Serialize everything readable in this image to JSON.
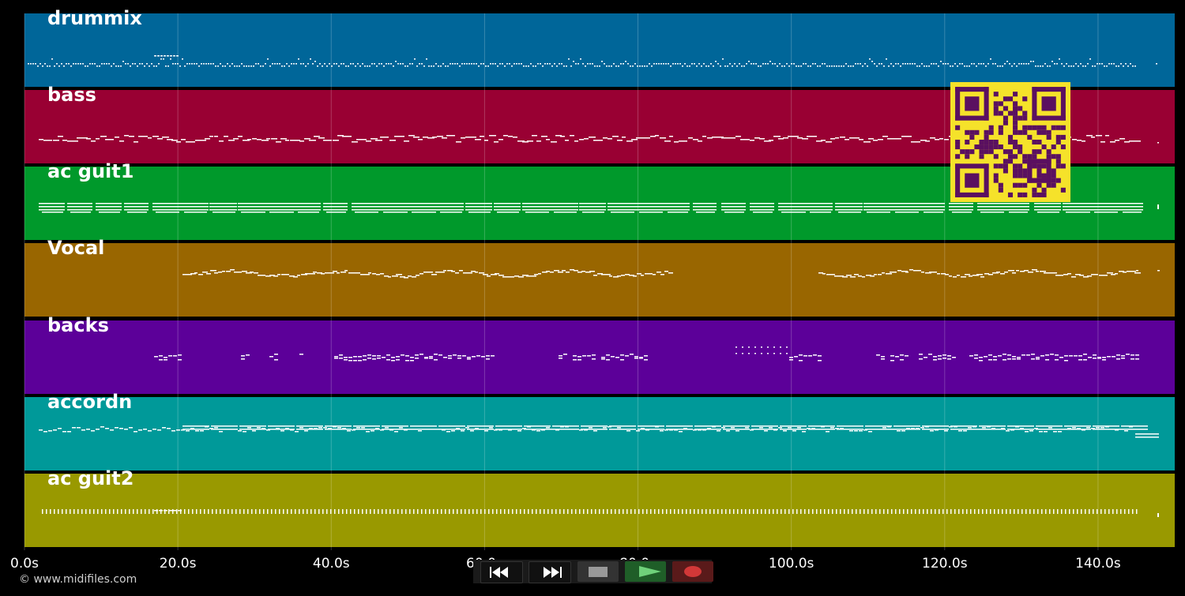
{
  "tracks": [
    {
      "name": "drummix",
      "color": "#006699",
      "pattern": "drums"
    },
    {
      "name": "bass",
      "color": "#990033",
      "pattern": "bass"
    },
    {
      "name": "ac guit1",
      "color": "#00992b",
      "pattern": "chords"
    },
    {
      "name": "Vocal",
      "color": "#996600",
      "pattern": "vocal"
    },
    {
      "name": "backs",
      "color": "#5c0099",
      "pattern": "backs"
    },
    {
      "name": "accordn",
      "color": "#009999",
      "pattern": "accordion"
    },
    {
      "name": "ac guit2",
      "color": "#999900",
      "pattern": "strum"
    }
  ],
  "timeline": {
    "ticks": [
      "0.0s",
      "20.0s",
      "40.0s",
      "60.0s",
      "80.0s",
      "100.0s",
      "120.0s",
      "140.0s"
    ],
    "max_seconds": 150
  },
  "footer": {
    "copyright": "© www.midifiles.com"
  },
  "transport": [
    {
      "name": "rewind-button",
      "icon": "rewind-icon"
    },
    {
      "name": "fast-forward-button",
      "icon": "fast-forward-icon"
    },
    {
      "name": "stop-button",
      "icon": "stop-icon"
    },
    {
      "name": "play-button",
      "icon": "play-icon",
      "color": "#2e8b3a"
    },
    {
      "name": "record-button",
      "icon": "record-icon",
      "color": "#8b2020"
    }
  ],
  "qr_code": {
    "icon": "qr-code-icon",
    "color": "#5a1060",
    "bg": "#f5e22a"
  }
}
